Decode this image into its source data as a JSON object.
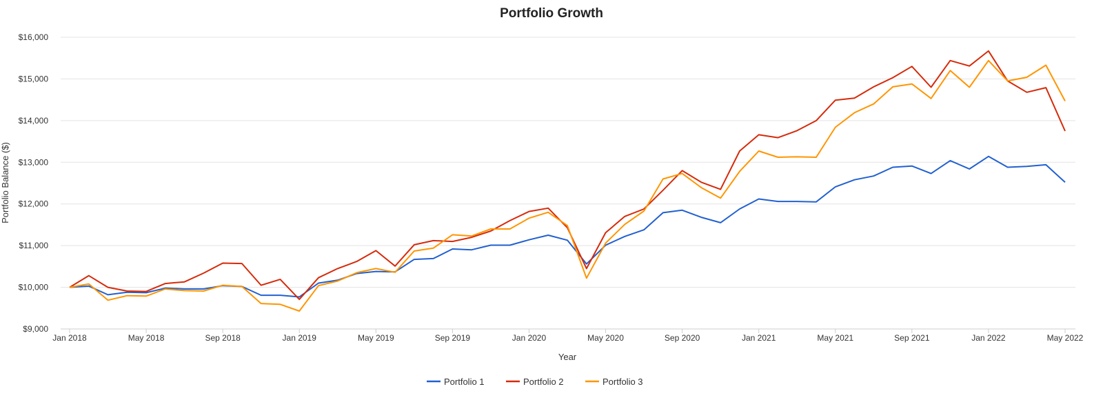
{
  "chart_data": {
    "type": "line",
    "title": "Portfolio Growth",
    "xlabel": "Year",
    "ylabel": "Portfolio Balance ($)",
    "ylim": [
      9000,
      16000
    ],
    "yticks": [
      9000,
      10000,
      11000,
      12000,
      13000,
      14000,
      15000,
      16000
    ],
    "ytick_labels": [
      "$9,000",
      "$10,000",
      "$11,000",
      "$12,000",
      "$13,000",
      "$14,000",
      "$15,000",
      "$16,000"
    ],
    "x_start": "Jan 2018",
    "x_end": "May 2022",
    "x_frequency": "monthly",
    "xtick_labels": [
      "Jan 2018",
      "May 2018",
      "Sep 2018",
      "Jan 2019",
      "May 2019",
      "Sep 2019",
      "Jan 2020",
      "May 2020",
      "Sep 2020",
      "Jan 2021",
      "May 2021",
      "Sep 2021",
      "Jan 2022",
      "May 2022"
    ],
    "grid": true,
    "legend_position": "bottom",
    "series": [
      {
        "name": "Portfolio 1",
        "color": "#2160d0",
        "values": [
          10000,
          10030,
          9820,
          9880,
          9870,
          9980,
          9960,
          9960,
          10040,
          10020,
          9810,
          9810,
          9770,
          10100,
          10170,
          10330,
          10380,
          10370,
          10670,
          10690,
          10920,
          10900,
          11010,
          11010,
          11140,
          11250,
          11130,
          10560,
          11010,
          11220,
          11380,
          11790,
          11850,
          11680,
          11550,
          11880,
          12120,
          12060,
          12060,
          12050,
          12410,
          12580,
          12670,
          12880,
          12910,
          12730,
          13040,
          12840,
          13140,
          12880,
          12900,
          12940,
          12520
        ]
      },
      {
        "name": "Portfolio 2",
        "color": "#d62a0a",
        "values": [
          10000,
          10280,
          10000,
          9910,
          9900,
          10090,
          10130,
          10340,
          10580,
          10570,
          10050,
          10190,
          9710,
          10230,
          10450,
          10620,
          10880,
          10510,
          11020,
          11120,
          11100,
          11200,
          11350,
          11600,
          11820,
          11900,
          11430,
          10450,
          11310,
          11700,
          11880,
          12330,
          12800,
          12520,
          12350,
          13270,
          13660,
          13590,
          13760,
          14000,
          14490,
          14540,
          14810,
          15030,
          15300,
          14800,
          15440,
          15310,
          15670,
          14950,
          14680,
          14790,
          13750
        ]
      },
      {
        "name": "Portfolio 3",
        "color": "#ff9500",
        "values": [
          10000,
          10080,
          9690,
          9800,
          9790,
          9960,
          9920,
          9910,
          10050,
          10020,
          9610,
          9590,
          9430,
          10040,
          10150,
          10350,
          10450,
          10360,
          10870,
          10940,
          11260,
          11230,
          11400,
          11400,
          11660,
          11800,
          11480,
          10220,
          11060,
          11510,
          11830,
          12600,
          12730,
          12390,
          12140,
          12780,
          13270,
          13120,
          13130,
          13120,
          13840,
          14190,
          14400,
          14810,
          14880,
          14530,
          15200,
          14800,
          15440,
          14950,
          15040,
          15330,
          14470
        ]
      }
    ]
  }
}
